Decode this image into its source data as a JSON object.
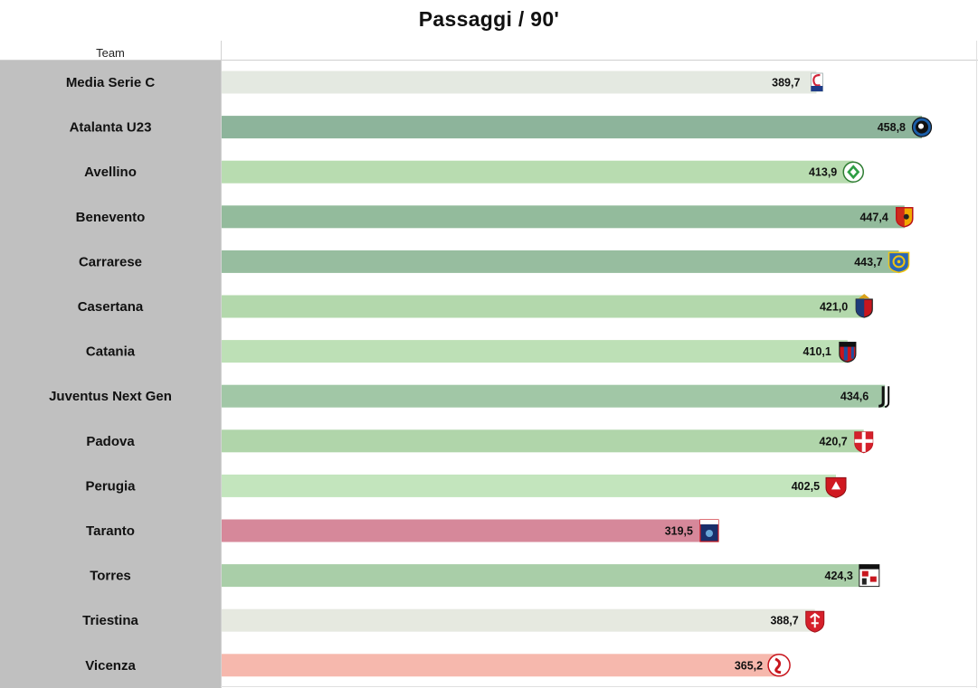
{
  "chart_data": {
    "type": "bar",
    "orientation": "horizontal",
    "title": "Passaggi / 90'",
    "column_header": "Team",
    "xlim": [
      0,
      458.8
    ],
    "grid": false,
    "legend": "none",
    "categories": [
      "Media Serie C",
      "Atalanta U23",
      "Avellino",
      "Benevento",
      "Carrarese",
      "Casertana",
      "Catania",
      "Juventus Next Gen",
      "Padova",
      "Perugia",
      "Taranto",
      "Torres",
      "Triestina",
      "Vicenza"
    ],
    "values": [
      389.7,
      458.8,
      413.9,
      447.4,
      443.7,
      421.0,
      410.1,
      434.6,
      420.7,
      402.5,
      319.5,
      424.3,
      388.7,
      365.2
    ],
    "value_labels": [
      "389,7",
      "458,8",
      "413,9",
      "447,4",
      "443,7",
      "421,0",
      "410,1",
      "434,6",
      "420,7",
      "402,5",
      "319,5",
      "424,3",
      "388,7",
      "365,2"
    ],
    "bar_colors": [
      "#e4e9e1",
      "#8db49b",
      "#b8dcb0",
      "#93bb9c",
      "#97bd9f",
      "#b3d8ac",
      "#bde0b6",
      "#a1c7a6",
      "#b0d5aa",
      "#c3e5bd",
      "#d6889a",
      "#a9cea8",
      "#e6e9e0",
      "#f6b8ad"
    ],
    "logo_icons": [
      "serie-c-logo",
      "atalanta-logo",
      "avellino-logo",
      "benevento-logo",
      "carrarese-logo",
      "casertana-logo",
      "catania-logo",
      "juventus-logo",
      "padova-logo",
      "perugia-logo",
      "taranto-logo",
      "torres-logo",
      "triestina-logo",
      "vicenza-logo"
    ]
  }
}
